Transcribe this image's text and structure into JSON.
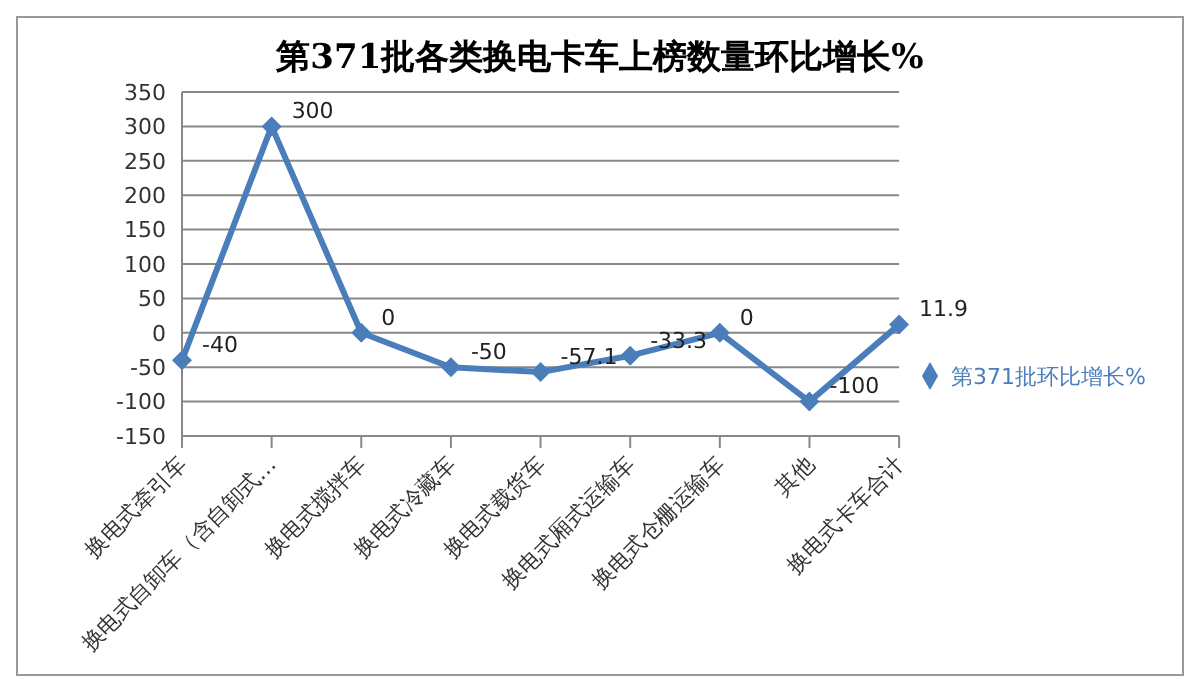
{
  "chart_data": {
    "type": "line",
    "title": "第371批各类换电卡车上榜数量环比增长%",
    "categories": [
      "换电式牵引车",
      "换电式自卸车（含自卸式…",
      "换电式搅拌车",
      "换电式冷藏车",
      "换电式载货车",
      "换电式厢式运输车",
      "换电式仓栅运输车",
      "其他",
      "换电式卡车合计"
    ],
    "series": [
      {
        "name": "第371批环比增长%",
        "color": "#4a7ebb",
        "values": [
          -40,
          300,
          0,
          -50,
          -57.1,
          -33.3,
          0,
          -100,
          11.9
        ]
      }
    ],
    "ylim": [
      -150,
      350
    ],
    "yticks": [
      -150,
      -100,
      -50,
      0,
      50,
      100,
      150,
      200,
      250,
      300,
      350
    ],
    "grid": "y",
    "legend": "right",
    "marker": "diamond",
    "data_labels": true
  }
}
